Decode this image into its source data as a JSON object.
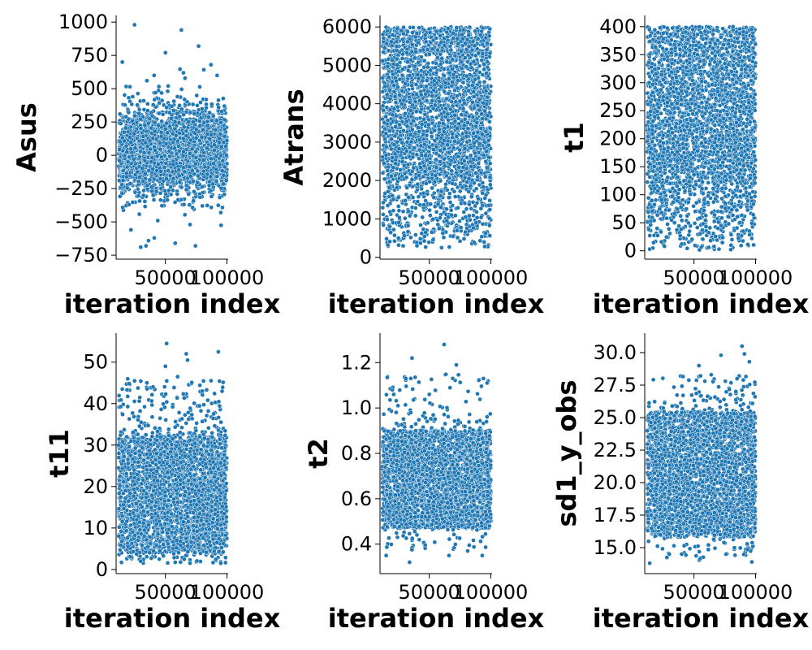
{
  "chart_data": [
    {
      "type": "scatter",
      "xlabel": "iteration index",
      "ylabel": "Asus",
      "xlim": [
        10000,
        101000
      ],
      "ylim": [
        -780,
        1050
      ],
      "xticks": [
        {
          "v": 50000,
          "label": "50000"
        },
        {
          "v": 100000,
          "label": "100000"
        }
      ],
      "yticks": [
        {
          "v": -750,
          "label": "−750"
        },
        {
          "v": -500,
          "label": "−500"
        },
        {
          "v": -250,
          "label": "−250"
        },
        {
          "v": 0,
          "label": "0"
        },
        {
          "v": 250,
          "label": "250"
        },
        {
          "v": 500,
          "label": "500"
        },
        {
          "v": 750,
          "label": "750"
        },
        {
          "v": 1000,
          "label": "1000"
        }
      ],
      "grid": false,
      "color": "#1f77b4",
      "points_summary": {
        "x_range": [
          12000,
          100000
        ],
        "n_points_approx": 9000,
        "center": 30,
        "typical_band": [
          -250,
          350
        ],
        "min": -680,
        "max": 990
      },
      "points_sample": [
        [
          25000,
          980
        ],
        [
          50000,
          770
        ],
        [
          63000,
          940
        ],
        [
          77000,
          820
        ],
        [
          87000,
          680
        ],
        [
          30000,
          -690
        ],
        [
          58000,
          -660
        ],
        [
          41000,
          -620
        ],
        [
          22000,
          -560
        ],
        [
          70000,
          -520
        ],
        [
          15000,
          700
        ],
        [
          92000,
          600
        ],
        [
          35000,
          560
        ],
        [
          80000,
          -380
        ],
        [
          95000,
          -430
        ]
      ]
    },
    {
      "type": "scatter",
      "xlabel": "iteration index",
      "ylabel": "Atrans",
      "xlim": [
        10000,
        101000
      ],
      "ylim": [
        -50,
        6300
      ],
      "xticks": [
        {
          "v": 50000,
          "label": "50000"
        },
        {
          "v": 100000,
          "label": "100000"
        }
      ],
      "yticks": [
        {
          "v": 0,
          "label": "0"
        },
        {
          "v": 1000,
          "label": "1000"
        },
        {
          "v": 2000,
          "label": "2000"
        },
        {
          "v": 3000,
          "label": "3000"
        },
        {
          "v": 4000,
          "label": "4000"
        },
        {
          "v": 5000,
          "label": "5000"
        },
        {
          "v": 6000,
          "label": "6000"
        }
      ],
      "grid": false,
      "color": "#1f77b4",
      "points_summary": {
        "x_range": [
          12000,
          100000
        ],
        "n_points_approx": 9000,
        "dense_band": [
          2000,
          6000
        ],
        "sparse_low_band": [
          250,
          2000
        ],
        "upper_bound": 6000,
        "min": 250
      },
      "points_sample": [
        [
          40000,
          300
        ],
        [
          60000,
          250
        ],
        [
          95000,
          280
        ],
        [
          25000,
          500
        ],
        [
          75000,
          420
        ],
        [
          18000,
          800
        ],
        [
          52000,
          650
        ],
        [
          88000,
          900
        ],
        [
          33000,
          1200
        ],
        [
          68000,
          1100
        ]
      ]
    },
    {
      "type": "scatter",
      "xlabel": "iteration index",
      "ylabel": "t1",
      "xlim": [
        10000,
        101000
      ],
      "ylim": [
        -15,
        420
      ],
      "xticks": [
        {
          "v": 50000,
          "label": "50000"
        },
        {
          "v": 100000,
          "label": "100000"
        }
      ],
      "yticks": [
        {
          "v": 0,
          "label": "0"
        },
        {
          "v": 50,
          "label": "50"
        },
        {
          "v": 100,
          "label": "100"
        },
        {
          "v": 150,
          "label": "150"
        },
        {
          "v": 200,
          "label": "200"
        },
        {
          "v": 250,
          "label": "250"
        },
        {
          "v": 300,
          "label": "300"
        },
        {
          "v": 350,
          "label": "350"
        },
        {
          "v": 400,
          "label": "400"
        }
      ],
      "grid": false,
      "color": "#1f77b4",
      "points_summary": {
        "x_range": [
          12000,
          100000
        ],
        "n_points_approx": 9000,
        "dense_band": [
          120,
          400
        ],
        "sparse_low_band": [
          0,
          120
        ],
        "upper_bound": 400,
        "min": 0
      },
      "points_sample": [
        [
          14000,
          3
        ],
        [
          26000,
          8
        ],
        [
          40000,
          12
        ],
        [
          62000,
          6
        ],
        [
          80000,
          10
        ],
        [
          97000,
          22
        ],
        [
          20000,
          40
        ],
        [
          55000,
          30
        ],
        [
          72000,
          45
        ],
        [
          90000,
          35
        ]
      ]
    },
    {
      "type": "scatter",
      "xlabel": "iteration index",
      "ylabel": "t11",
      "xlim": [
        10000,
        101000
      ],
      "ylim": [
        -1,
        57
      ],
      "xticks": [
        {
          "v": 50000,
          "label": "50000"
        },
        {
          "v": 100000,
          "label": "100000"
        }
      ],
      "yticks": [
        {
          "v": 0,
          "label": "0"
        },
        {
          "v": 10,
          "label": "10"
        },
        {
          "v": 20,
          "label": "20"
        },
        {
          "v": 30,
          "label": "30"
        },
        {
          "v": 40,
          "label": "40"
        },
        {
          "v": 50,
          "label": "50"
        }
      ],
      "grid": false,
      "color": "#1f77b4",
      "points_summary": {
        "x_range": [
          12000,
          100000
        ],
        "n_points_approx": 9000,
        "dense_band": [
          4,
          32
        ],
        "sparse_high_band": [
          32,
          55
        ],
        "min": 1.5,
        "max": 54.5
      },
      "points_sample": [
        [
          51000,
          54.5
        ],
        [
          67000,
          52
        ],
        [
          93000,
          52.5
        ],
        [
          68000,
          50.5
        ],
        [
          50000,
          49
        ],
        [
          60000,
          46.5
        ],
        [
          25000,
          45.5
        ],
        [
          35000,
          45
        ],
        [
          80000,
          43
        ],
        [
          40000,
          44
        ],
        [
          15000,
          43.5
        ],
        [
          30000,
          2
        ],
        [
          70000,
          1.5
        ],
        [
          45000,
          2.5
        ],
        [
          95000,
          1.5
        ]
      ]
    },
    {
      "type": "scatter",
      "xlabel": "iteration index",
      "ylabel": "t2",
      "xlim": [
        10000,
        101000
      ],
      "ylim": [
        0.27,
        1.33
      ],
      "xticks": [
        {
          "v": 50000,
          "label": "50000"
        },
        {
          "v": 100000,
          "label": "100000"
        }
      ],
      "yticks": [
        {
          "v": 0.4,
          "label": "0.4"
        },
        {
          "v": 0.6,
          "label": "0.6"
        },
        {
          "v": 0.8,
          "label": "0.8"
        },
        {
          "v": 1.0,
          "label": "1.0"
        },
        {
          "v": 1.2,
          "label": "1.2"
        }
      ],
      "grid": false,
      "color": "#1f77b4",
      "points_summary": {
        "x_range": [
          12000,
          100000
        ],
        "n_points_approx": 9000,
        "dense_band": [
          0.45,
          0.9
        ],
        "center": 0.65,
        "min": 0.32,
        "max": 1.28
      },
      "points_sample": [
        [
          62000,
          1.28
        ],
        [
          36000,
          1.22
        ],
        [
          72000,
          1.19
        ],
        [
          31000,
          1.13
        ],
        [
          35000,
          1.13
        ],
        [
          94000,
          1.13
        ],
        [
          97000,
          1.11
        ],
        [
          69000,
          1.13
        ],
        [
          34000,
          0.32
        ],
        [
          15000,
          0.35
        ],
        [
          66000,
          0.35
        ],
        [
          93000,
          0.35
        ],
        [
          20000,
          1.08
        ],
        [
          50000,
          1.06
        ]
      ]
    },
    {
      "type": "scatter",
      "xlabel": "iteration index",
      "ylabel": "sd1_y_obs",
      "xlim": [
        10000,
        101000
      ],
      "ylim": [
        13.0,
        31.5
      ],
      "xticks": [
        {
          "v": 50000,
          "label": "50000"
        },
        {
          "v": 100000,
          "label": "100000"
        }
      ],
      "yticks": [
        {
          "v": 15.0,
          "label": "15.0"
        },
        {
          "v": 17.5,
          "label": "17.5"
        },
        {
          "v": 20.0,
          "label": "20.0"
        },
        {
          "v": 22.5,
          "label": "22.5"
        },
        {
          "v": 25.0,
          "label": "25.0"
        },
        {
          "v": 27.5,
          "label": "27.5"
        },
        {
          "v": 30.0,
          "label": "30.0"
        }
      ],
      "grid": false,
      "color": "#1f77b4",
      "points_summary": {
        "x_range": [
          12000,
          100000
        ],
        "n_points_approx": 9000,
        "dense_band": [
          15.5,
          25.5
        ],
        "center": 20.0,
        "min": 13.8,
        "max": 30.5
      },
      "points_sample": [
        [
          89000,
          30.5
        ],
        [
          72000,
          29.8
        ],
        [
          91000,
          29.9
        ],
        [
          95000,
          29.3
        ],
        [
          54000,
          29.0
        ],
        [
          64000,
          28.3
        ],
        [
          85000,
          28.0
        ],
        [
          14000,
          13.8
        ],
        [
          97000,
          13.9
        ],
        [
          30000,
          14.5
        ],
        [
          40000,
          14.5
        ],
        [
          76000,
          14.5
        ]
      ]
    }
  ]
}
